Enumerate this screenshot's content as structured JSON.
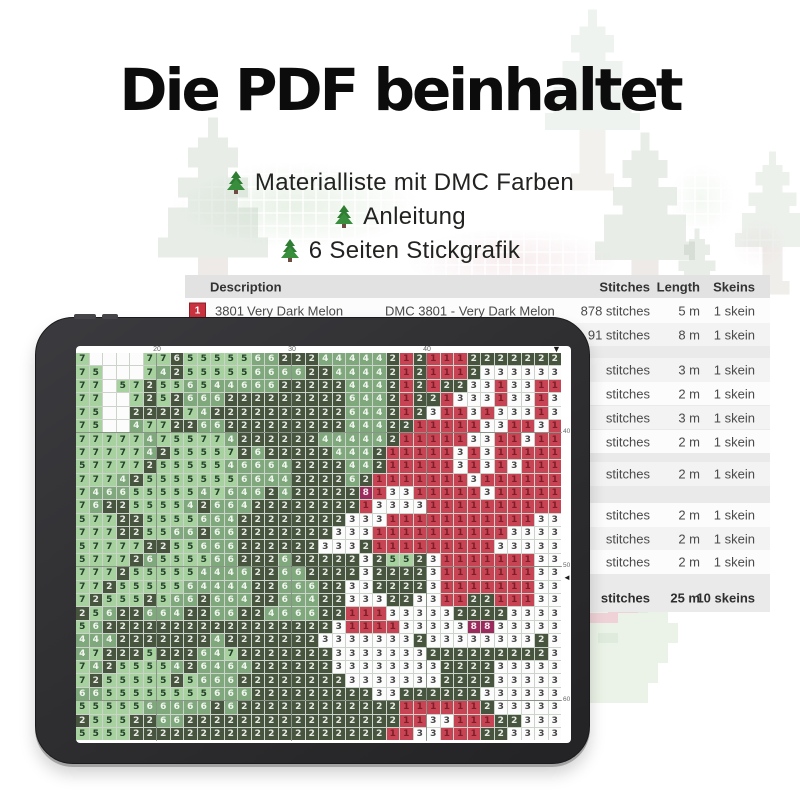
{
  "title": "Die PDF beinhaltet",
  "bullets": [
    {
      "icon": "christmas-tree-icon",
      "label": "Materialliste mit DMC Farben"
    },
    {
      "icon": "christmas-tree-icon",
      "label": "Anleitung"
    },
    {
      "icon": "christmas-tree-icon",
      "label": "6 Seiten Stickgrafik"
    }
  ],
  "materials_table": {
    "columns": [
      "Description",
      "Stitches",
      "Length",
      "Skeins"
    ],
    "rows": [
      {
        "swatch_number": "1",
        "swatch_color": "#c9323e",
        "code": "3801",
        "name": "Very Dark Melon",
        "description": "DMC 3801 - Very Dark Melon",
        "stitches": "878 stitches",
        "length": "5 m",
        "skeins": "1 skein"
      },
      {
        "stitches": "91 stitches",
        "length": "8 m",
        "skeins": "1 skein"
      },
      {
        "stitches": "stitches",
        "length": "3 m",
        "skeins": "1 skein"
      },
      {
        "stitches": "stitches",
        "length": "2 m",
        "skeins": "1 skein"
      },
      {
        "stitches": "stitches",
        "length": "3 m",
        "skeins": "1 skein"
      },
      {
        "stitches": "stitches",
        "length": "2 m",
        "skeins": "1 skein"
      },
      {
        "stitches": "stitches",
        "length": "2 m",
        "skeins": "1 skein"
      },
      {
        "stitches": "stitches",
        "length": "2 m",
        "skeins": "1 skein"
      },
      {
        "stitches": "stitches",
        "length": "2 m",
        "skeins": "1 skein"
      },
      {
        "stitches": "stitches",
        "length": "2 m",
        "skeins": "1 skein"
      }
    ],
    "total": {
      "stitches": "stitches",
      "length": "25 m",
      "skeins": "10 skeins"
    }
  },
  "pattern": {
    "column_markers": [
      "20",
      "30",
      "40"
    ],
    "row_markers": [
      "40",
      "50",
      "60"
    ],
    "top_arrow": "▼",
    "side_arrow": "◄",
    "palette": {
      "L": {
        "bg": "#a8d1a0",
        "fg": "#23402a"
      },
      "M": {
        "bg": "#7fa97c",
        "fg": "#f2f6f0"
      },
      "D": {
        "bg": "#47553f",
        "fg": "#e9ece6"
      },
      "W": {
        "bg": "#fcfcfc",
        "fg": "#474747"
      },
      "R": {
        "bg": "#c64453",
        "fg": "#7e1d28"
      },
      "P": {
        "bg": "#9b2b5c",
        "fg": "#f5e9ee"
      }
    },
    "rows": [
      "L7W.W.W.W.L7L7D6L5L5L5L5L5M6M6D2D2D2M4M4M4M4M4D2R1D2R1R1R1D2D2D2D2D2D2D2",
      "L7L5W.W.W.L7M4D2L5L5L5L5L5M6M6M6M6D2D2M4M4M4M4D2R1D2R1R1R1D2W3W3W3W3W3W3",
      "L7L7W.L5L7D2L5L5M6L5M4M4M6M6M6D2D2D2D2D2M4M4M4D2R1D2R1D2D2W3W3R1W3W3R1R1",
      "L7L7W.W.L7D2L5D2M6M6M6D2D2D2D2D2D2D2D2D2M6M4M4D2R1D2D2R1W3W3W3R1W3W3R1W3",
      "L7L5W.W.D2D2D2D2L7M4D2D2D2D2D2D2D2D2D2D2M6M4M4D2R1D2W3R1R1W3R1W3W3W3R1W3",
      "L7L5W.W.M4L7L7D2D2M6M6D2D2D2D2D2D2D2D2D2M4M4M4D2D2R1R1R1R1R1W3W3R1R1W3R1",
      "L7L7L7L7L7M4L7L5L5L7L7M4D2D2D2D2D2D2M4M4M4M4M4D2R1R1R1R1R1W3W3R1R1W3R1R1",
      "L7L7L7L7L7M4D2L5L5L5L5L7D2M6D2D2D2D2D2M4M4M4D2R1R1R1R1R1W3R1W3R1R1R1R1R1",
      "L5L7L7L7L7D2L5L5L5L5L5M4M6M6M6M4D2D2D2D2M4M4D2R1R1R1R1R1W3R1W3R1W3R1R1R1",
      "L7L7L7M4D2L5L5L5L5L5L5L5M6M6M4M4D2D2D2D2M6D2R1R1R1R1R1R1R1W3R1R1R1R1R1R1",
      "L7M4M6M6L5L5L5L5L5M4L7M6M4M6D2M4D2D2D2D2D2P8R1W3W3R1R1R1R1R1W3R1R1R1R1R1",
      "L7M6D2D2L5L5L5L5M4D2M6M6M4D2D2D2D2D2D2D2D2R1W3W3W3W3R1R1R1R1R1R1R1R1R1R1",
      "L5L7L7D2D2L5L5L5L5M6M6M4D2D2D2D2D2D2D2D2W3W3W3R1R1R1R1R1R1R1R1R1R1R1W3W3",
      "L7L7L7D2D2L5L5M6M6D2M6M6D2D2D2D2D2D2D2W3W3W3R1R1R1R1R1R1R1R1R1R1W3W3W3W3",
      "L5L7L7L7L7D2D2L5L5M6M6M6D2D2D2D2D2D2W3W3W3D2R1R1R1R1R1R1R1R1R1W3W3W3W3W3",
      "L5L7L7L7D2M6L5L5L5L5M6M6D2D2D2M6D2D2D2D2D2W3D2L5L5D2W3R1R1R1R1R1R1R1W3W3",
      "L7L7L7D2L5L5L5L5L5M4M4M4M6D2D2M6M6D2D2D2D2W3D2D2D2D2W3R1R1R1R1R1R1R1W3W3",
      "L7L7D2L5L5L5L5L5M6M4M4M4M4D2D2M6M6M6D2D2W3W3D2D2D2D2W3R1R1R1R1R1R1R1W3W3",
      "L7D2L5L5L5D2L5M6M6D2M6M6M4D2D2M6M6M4D2D2W3W3W3D2D2W3W3R1R1D2D2R1R1R1W3W3",
      "D2L5M6D2D2M6M6M4D2D2M6M6D2D2M4M6M6M6D2D2R1R1R1W3W3W3W3W3D2D2D2D2W3W3W3W3",
      "L5M6D2D2D2D2D2D2D2D2D2D2D2D2D2D2D2D2D2W3R1R1R1R1W3W3W3W3W3P8P8W3W3W3W3W3",
      "M4M4M4D2D2D2D2D2D2D2M4D2D2D2D2D2D2D2W3W3W3W3W3W3W3D2W3W3W3W3W3W3W3W3D2W3",
      "M4L7D2D2D2L5D2D2D2M6M4L7D2D2D2D2D2D2D2W3W3W3W3W3W3W3D2D2D2D2D2D2D2D2D2W3",
      "L7M4D2L5L5L5L5M4D2M6M4M6M4D2D2D2D2D2D2W3W3W3W3W3W3W3W3D2D2D2D2W3W3W3W3W3",
      "L7D2L5L5L5L5L5D2L5M6M6M6D2D2D2D2D2D2D2D2W3W3W3W3W3W3W3D2D2D2D2W3W3W3W3W3",
      "M6M6L5L5L5L5L5L5L5L5M6M6M6D2D2D2D2D2D2D2D2D2W3W3D2D2D2D2D2D2W3W3W3W3W3W3",
      "L5L5L5L5L5M6M6M6M6M6D2M6D2D2D2D2D2D2D2D2D2D2D2D2R1R1R1R1R1R1D2W3W3W3W3W3",
      "D2L5L5L5D2D2M6M6D2D2D2D2D2D2D2D2D2D2D2D2D2D2D2D2R1R1W3W3R1R1R1D2D2W3W3W3",
      "L5L5L5L5D2D2D2D2D2D2D2D2D2D2D2D2D2D2D2D2D2D2D2R1R1W3W3R1R1R1D2D2W3W3W3W3"
    ]
  }
}
